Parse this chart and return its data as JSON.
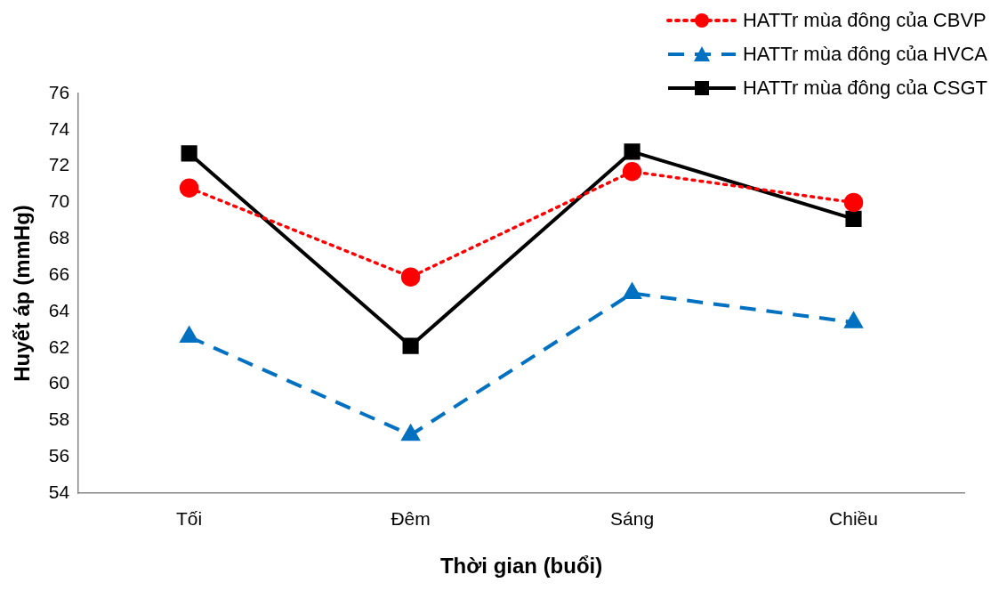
{
  "chart_data": {
    "type": "line",
    "xlabel": "Thời gian (buổi)",
    "ylabel": "Huyết áp (mmHg)",
    "categories": [
      "Tối",
      "Đêm",
      "Sáng",
      "Chiều"
    ],
    "series": [
      {
        "name": "HATTr mùa đông của CBVP",
        "color": "#ff0000",
        "values": [
          70.8,
          65.9,
          71.7,
          70.0
        ],
        "marker": "circle",
        "line_style": "dotted"
      },
      {
        "name": "HATTr mùa đông của HVCA",
        "color": "#0070c0",
        "values": [
          62.6,
          57.2,
          65.0,
          63.4
        ],
        "marker": "triangle",
        "line_style": "dashed"
      },
      {
        "name": "HATTr mùa đông của CSGT",
        "color": "#000000",
        "values": [
          72.7,
          62.1,
          72.8,
          69.1
        ],
        "marker": "square",
        "line_style": "solid"
      }
    ],
    "ylim": [
      54,
      76
    ],
    "yticks": [
      54,
      56,
      58,
      60,
      62,
      64,
      66,
      68,
      70,
      72,
      74,
      76
    ],
    "grid": false,
    "legend": "top right"
  }
}
